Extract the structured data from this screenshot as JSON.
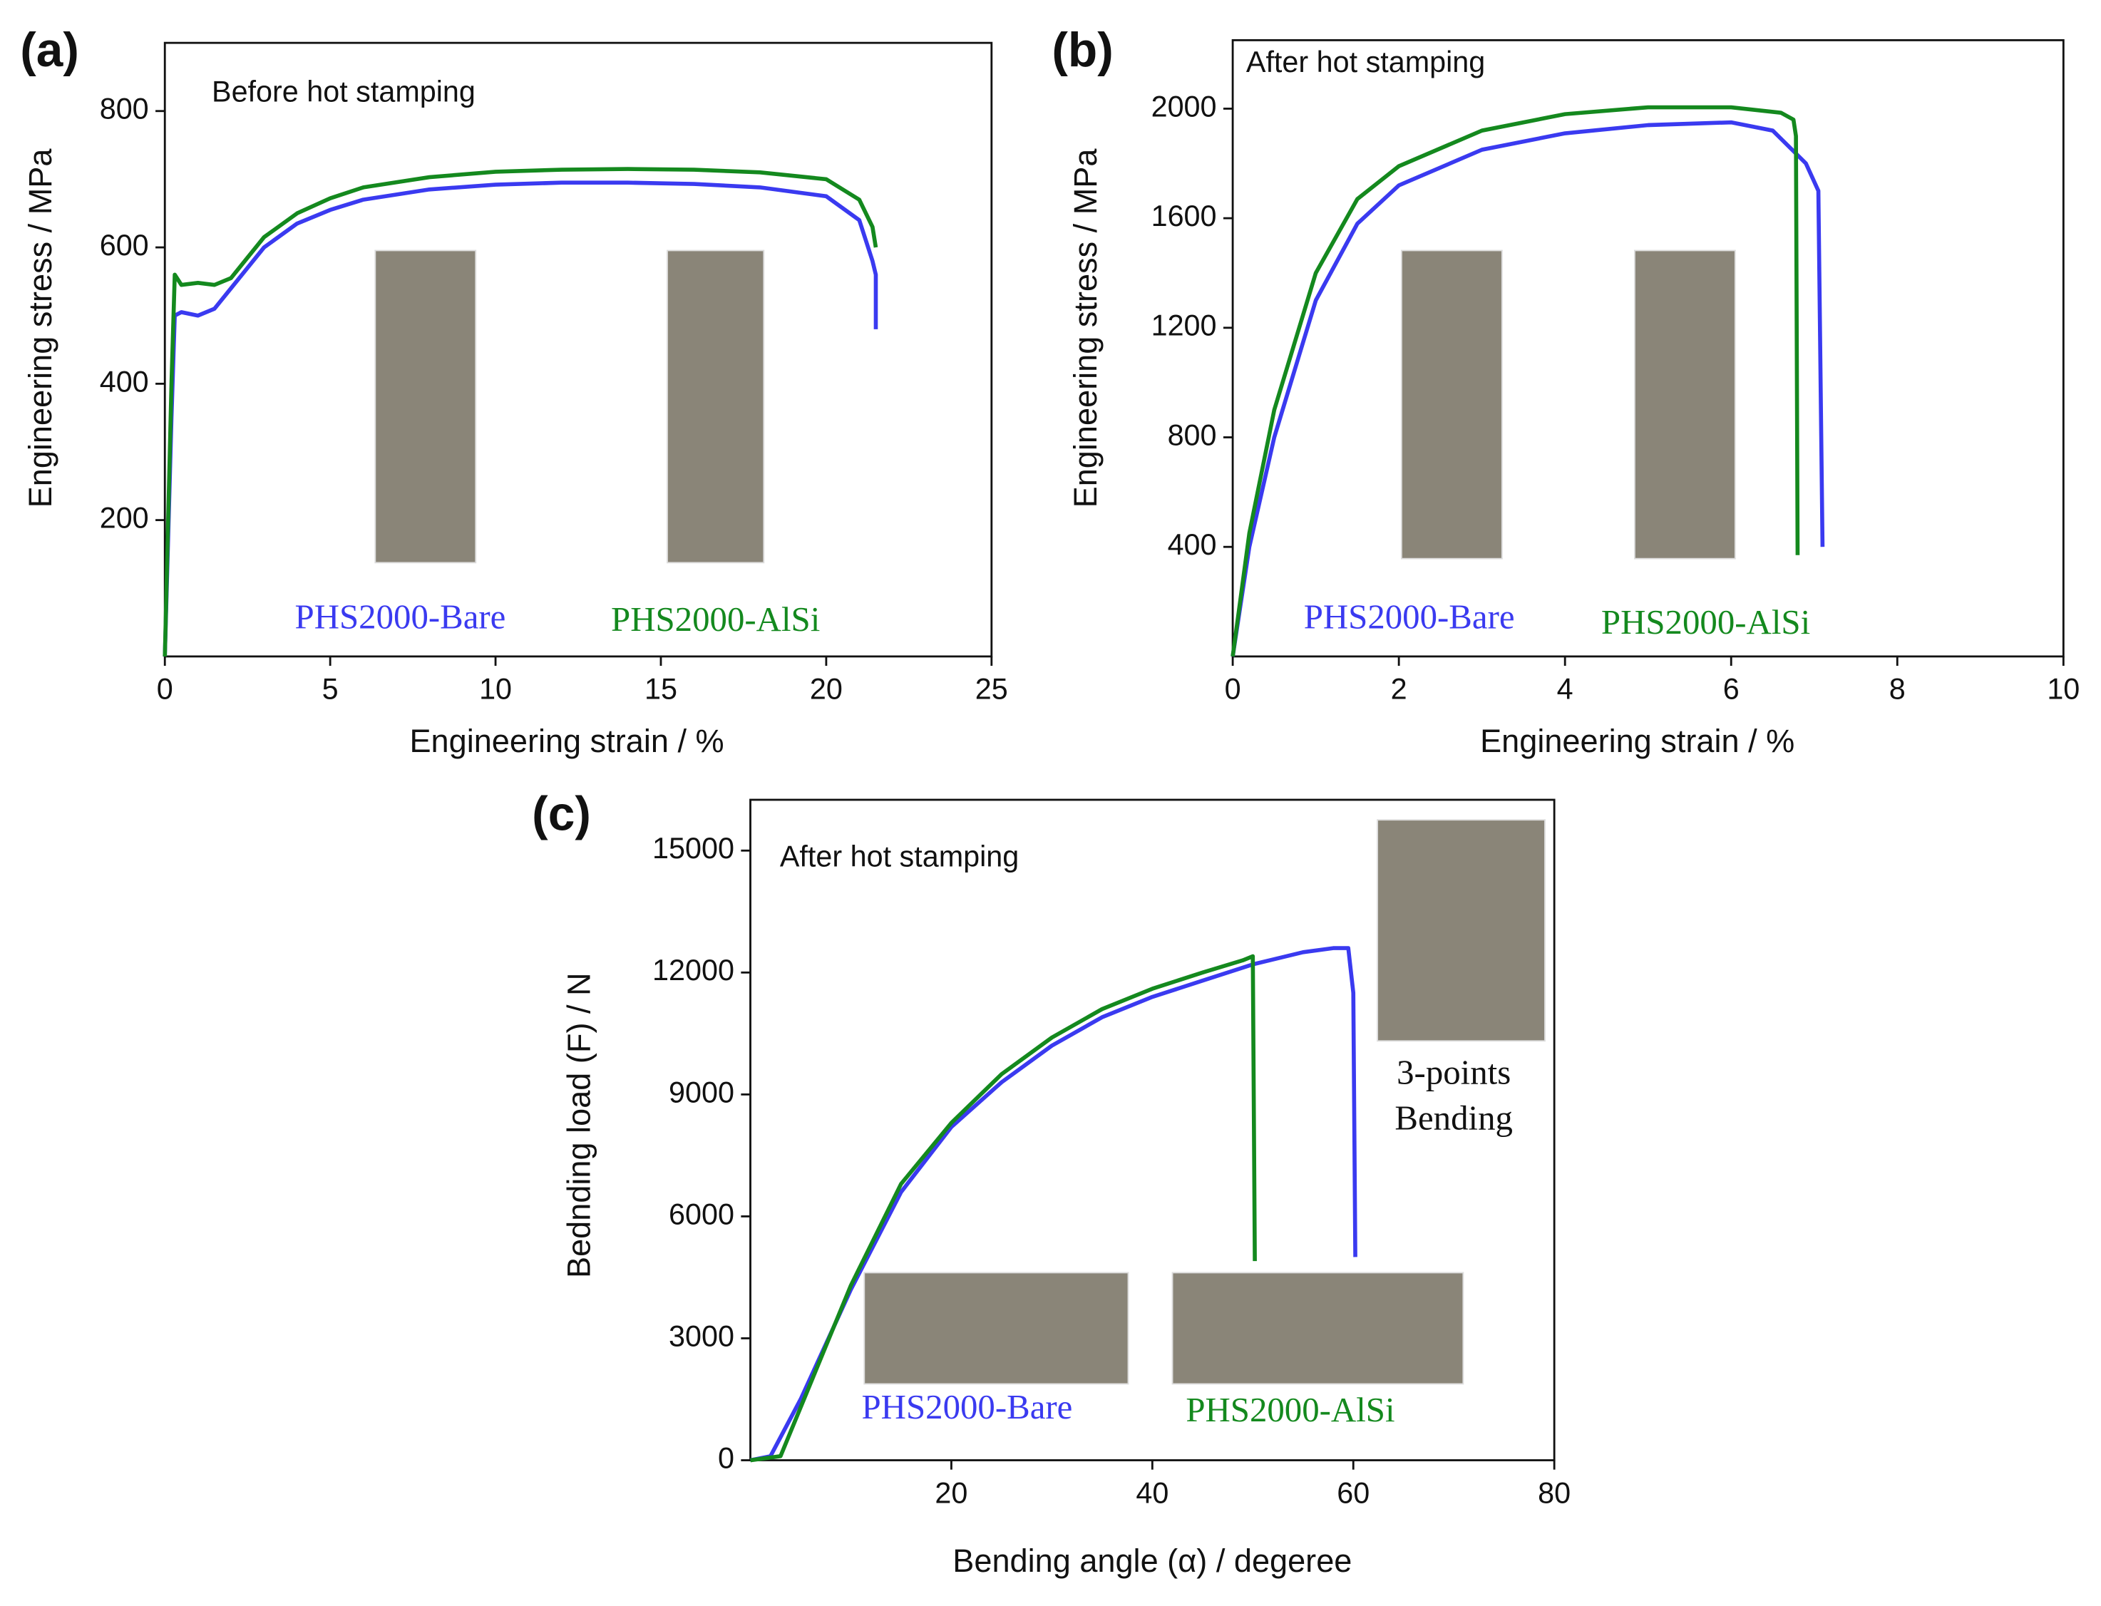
{
  "chart_data": [
    {
      "type": "line",
      "panel": "(a)",
      "title": "Before hot stamping",
      "x_label": "Engineering strain / %",
      "y_label": "Engineering stress / MPa",
      "xlim": [
        0,
        25
      ],
      "xticks": [
        0,
        5,
        10,
        15,
        20,
        25
      ],
      "ylim": [
        0,
        900
      ],
      "yticks": [
        200,
        400,
        600,
        800
      ],
      "series": [
        {
          "name": "PHS2000-Bare",
          "color": "#3a3af0",
          "x": [
            0,
            0.2,
            0.3,
            0.5,
            1,
            1.5,
            2,
            3,
            4,
            5,
            6,
            8,
            10,
            12,
            14,
            16,
            18,
            20,
            21,
            21.4,
            21.5,
            21.5
          ],
          "values": [
            0,
            350,
            500,
            505,
            500,
            510,
            540,
            600,
            635,
            655,
            670,
            685,
            692,
            695,
            695,
            693,
            688,
            675,
            640,
            580,
            560,
            480
          ]
        },
        {
          "name": "PHS2000-AlSi",
          "color": "#14891e",
          "x": [
            0,
            0.2,
            0.3,
            0.5,
            1,
            1.5,
            2,
            3,
            4,
            5,
            6,
            8,
            10,
            12,
            14,
            16,
            18,
            20,
            21,
            21.4,
            21.5
          ],
          "values": [
            0,
            400,
            560,
            545,
            548,
            545,
            555,
            615,
            650,
            672,
            688,
            703,
            711,
            714,
            715,
            714,
            710,
            700,
            670,
            630,
            600
          ]
        }
      ]
    },
    {
      "type": "line",
      "panel": "(b)",
      "title": "After hot stamping",
      "x_label": "Engineering strain / %",
      "y_label": "Engineering stress / MPa",
      "xlim": [
        0,
        10
      ],
      "xticks": [
        0,
        2,
        4,
        6,
        8,
        10
      ],
      "ylim": [
        0,
        2250
      ],
      "yticks": [
        400,
        800,
        1200,
        1600,
        2000
      ],
      "series": [
        {
          "name": "PHS2000-Bare",
          "color": "#3a3af0",
          "x": [
            0,
            0.2,
            0.5,
            0.8,
            1,
            1.5,
            2,
            3,
            4,
            5,
            6,
            6.5,
            6.9,
            7.05,
            7.1
          ],
          "values": [
            0,
            400,
            800,
            1100,
            1300,
            1580,
            1720,
            1850,
            1910,
            1940,
            1950,
            1920,
            1800,
            1700,
            400
          ]
        },
        {
          "name": "PHS2000-AlSi",
          "color": "#14891e",
          "x": [
            0,
            0.2,
            0.5,
            0.8,
            1,
            1.5,
            2,
            3,
            4,
            5,
            6,
            6.6,
            6.75,
            6.78,
            6.8
          ],
          "values": [
            0,
            450,
            900,
            1200,
            1400,
            1670,
            1790,
            1920,
            1980,
            2005,
            2005,
            1985,
            1960,
            1900,
            370
          ]
        }
      ]
    },
    {
      "type": "line",
      "panel": "(c)",
      "title": "After hot stamping",
      "x_label": "Bending angle (α) / degeree",
      "y_label": "Bednding load (F) / N",
      "annotation": [
        "3-points",
        "Bending"
      ],
      "xlim": [
        0,
        80
      ],
      "xticks": [
        20,
        40,
        60,
        80
      ],
      "ylim": [
        0,
        16250
      ],
      "yticks": [
        0,
        3000,
        6000,
        9000,
        12000,
        15000
      ],
      "series": [
        {
          "name": "PHS2000-Bare",
          "color": "#3a3af0",
          "x": [
            0,
            2,
            5,
            10,
            15,
            20,
            25,
            30,
            35,
            40,
            45,
            50,
            55,
            58,
            59.5,
            60,
            60.2
          ],
          "values": [
            0,
            100,
            1500,
            4200,
            6600,
            8200,
            9300,
            10200,
            10900,
            11400,
            11800,
            12200,
            12500,
            12600,
            12600,
            11500,
            5000
          ]
        },
        {
          "name": "PHS2000-AlSi",
          "color": "#14891e",
          "x": [
            0,
            3,
            5,
            10,
            15,
            20,
            25,
            30,
            35,
            40,
            45,
            49,
            50,
            50.2
          ],
          "values": [
            0,
            100,
            1300,
            4300,
            6800,
            8300,
            9500,
            10400,
            11100,
            11600,
            12000,
            12300,
            12400,
            4900
          ]
        }
      ]
    }
  ]
}
